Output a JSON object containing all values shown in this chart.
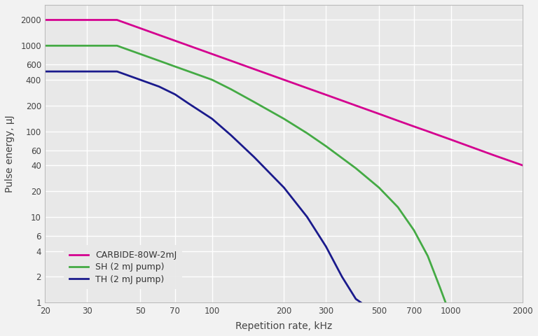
{
  "xlabel": "Repetition rate, kHz",
  "ylabel": "Pulse energy, μJ",
  "fig_background": "#f2f2f2",
  "plot_background": "#e8e8e8",
  "grid_color": "#ffffff",
  "series": [
    {
      "label": "CARBIDE-80W-2mJ",
      "color": "#d4008f",
      "x": [
        20,
        30,
        40,
        50,
        60,
        70,
        80,
        100,
        120,
        150,
        200,
        250,
        300,
        400,
        500,
        600,
        700,
        800,
        1000,
        1500,
        2000
      ],
      "y": [
        2000,
        2000,
        2000,
        1600,
        1333,
        1143,
        1000,
        800,
        667,
        533,
        400,
        320,
        267,
        200,
        160,
        133,
        114,
        100,
        80,
        53,
        40
      ]
    },
    {
      "label": "SH (2 mJ pump)",
      "color": "#44aa44",
      "x": [
        20,
        30,
        40,
        50,
        60,
        70,
        80,
        100,
        120,
        150,
        200,
        250,
        300,
        400,
        500,
        600,
        700,
        800,
        900,
        950
      ],
      "y": [
        1000,
        1000,
        1000,
        800,
        667,
        571,
        500,
        400,
        310,
        220,
        140,
        95,
        67,
        37,
        22,
        13,
        7,
        3.5,
        1.5,
        1.0
      ]
    },
    {
      "label": "TH (2 mJ pump)",
      "color": "#1a1a8c",
      "x": [
        20,
        30,
        40,
        50,
        60,
        70,
        80,
        100,
        120,
        150,
        200,
        250,
        300,
        350,
        400,
        420
      ],
      "y": [
        500,
        500,
        500,
        400,
        333,
        270,
        210,
        140,
        90,
        50,
        22,
        10,
        4.5,
        2.0,
        1.1,
        1.0
      ]
    }
  ],
  "xlim": [
    20,
    2000
  ],
  "ylim": [
    1,
    3000
  ],
  "xticks": [
    20,
    30,
    50,
    70,
    100,
    200,
    300,
    500,
    700,
    1000,
    2000
  ],
  "xtick_labels": [
    "20",
    "30",
    "50",
    "70",
    "100",
    "200",
    "300",
    "500",
    "700",
    "1000",
    "2000"
  ],
  "yticks": [
    1,
    2,
    4,
    6,
    10,
    20,
    40,
    60,
    100,
    200,
    400,
    600,
    1000,
    2000
  ],
  "ytick_labels": [
    "1",
    "2",
    "4",
    "6",
    "10",
    "20",
    "40",
    "60",
    "100",
    "200",
    "400",
    "600",
    "1000",
    "2000"
  ],
  "linewidth": 2.0
}
